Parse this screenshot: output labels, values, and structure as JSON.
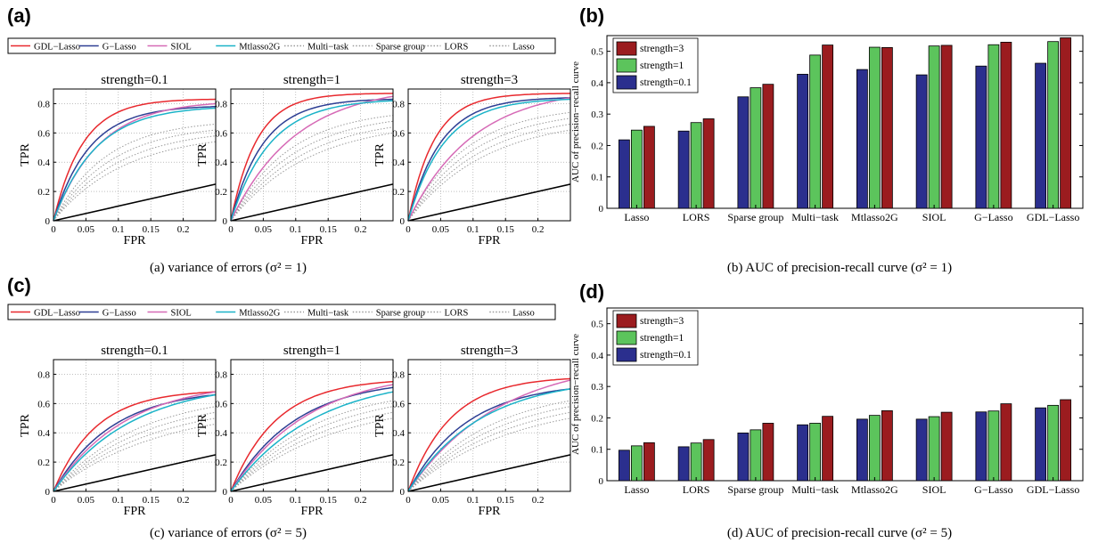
{
  "panels": {
    "a": {
      "label": "(a)",
      "caption": "(a)  variance of errors (σ² = 1)"
    },
    "b": {
      "label": "(b)",
      "caption": "(b)  AUC of precision-recall curve (σ² = 1)"
    },
    "c": {
      "label": "(c)",
      "caption": "(c)  variance of errors (σ² = 5)"
    },
    "d": {
      "label": "(d)",
      "caption": "(d)  AUC of precision-recall curve (σ² = 5)"
    }
  },
  "roc_legend": [
    {
      "name": "GDL−Lasso",
      "color": "#e8292e",
      "style": "solid"
    },
    {
      "name": "G−Lasso",
      "color": "#2e3f94",
      "style": "solid"
    },
    {
      "name": "SIOL",
      "color": "#d66ab6",
      "style": "solid"
    },
    {
      "name": "Mtlasso2G",
      "color": "#1bb3c8",
      "style": "solid"
    },
    {
      "name": "Multi−task",
      "color": "#9a9a9a",
      "style": "dotted"
    },
    {
      "name": "Sparse group",
      "color": "#9a9a9a",
      "style": "dotted"
    },
    {
      "name": "LORS",
      "color": "#9a9a9a",
      "style": "dotted"
    },
    {
      "name": "Lasso",
      "color": "#9a9a9a",
      "style": "dotted"
    }
  ],
  "bar_legend": [
    {
      "name": "strength=3",
      "color": "#9b1c1f"
    },
    {
      "name": "strength=1",
      "color": "#5cc45c"
    },
    {
      "name": "strength=0.1",
      "color": "#2b2f8e"
    }
  ],
  "chart_data": [
    {
      "id": "a",
      "type": "line",
      "xlabel": "FPR",
      "ylabel": "TPR",
      "xlim": [
        0,
        0.25
      ],
      "ylim": [
        0,
        0.9
      ],
      "grid": true,
      "xticks": [
        0,
        0.05,
        0.1,
        0.15,
        0.2
      ],
      "yticks": [
        0,
        0.2,
        0.4,
        0.6,
        0.8
      ],
      "subplots": [
        {
          "title": "strength=0.1",
          "curves": [
            {
              "series": "GDL−Lasso",
              "top": 0.83,
              "k": 0.045
            },
            {
              "series": "G−Lasso",
              "top": 0.78,
              "k": 0.055
            },
            {
              "series": "SIOL",
              "top": 0.8,
              "k": 0.07
            },
            {
              "series": "Mtlasso2G",
              "top": 0.77,
              "k": 0.065
            },
            {
              "series": "Multi−task",
              "top": 0.66,
              "k": 0.08
            },
            {
              "series": "Sparse group",
              "top": 0.62,
              "k": 0.09
            },
            {
              "series": "LORS",
              "top": 0.58,
              "k": 0.1
            },
            {
              "series": "Lasso",
              "top": 0.54,
              "k": 0.11
            }
          ]
        },
        {
          "title": "strength=1",
          "curves": [
            {
              "series": "GDL−Lasso",
              "top": 0.87,
              "k": 0.04
            },
            {
              "series": "G−Lasso",
              "top": 0.83,
              "k": 0.05
            },
            {
              "series": "SIOL",
              "top": 0.85,
              "k": 0.1
            },
            {
              "series": "Mtlasso2G",
              "top": 0.82,
              "k": 0.06
            },
            {
              "series": "Multi−task",
              "top": 0.72,
              "k": 0.09
            },
            {
              "series": "Sparse group",
              "top": 0.68,
              "k": 0.1
            },
            {
              "series": "LORS",
              "top": 0.64,
              "k": 0.11
            },
            {
              "series": "Lasso",
              "top": 0.6,
              "k": 0.12
            }
          ]
        },
        {
          "title": "strength=3",
          "curves": [
            {
              "series": "GDL−Lasso",
              "top": 0.87,
              "k": 0.04
            },
            {
              "series": "G−Lasso",
              "top": 0.84,
              "k": 0.05
            },
            {
              "series": "SIOL",
              "top": 0.84,
              "k": 0.1
            },
            {
              "series": "Mtlasso2G",
              "top": 0.83,
              "k": 0.055
            },
            {
              "series": "Multi−task",
              "top": 0.74,
              "k": 0.09
            },
            {
              "series": "Sparse group",
              "top": 0.7,
              "k": 0.1
            },
            {
              "series": "LORS",
              "top": 0.66,
              "k": 0.11
            },
            {
              "series": "Lasso",
              "top": 0.62,
              "k": 0.12
            }
          ]
        }
      ]
    },
    {
      "id": "b",
      "type": "bar",
      "ylabel": "AUC of precision−recall curve",
      "ylim": [
        0,
        0.55
      ],
      "yticks": [
        0,
        0.1,
        0.2,
        0.3,
        0.4,
        0.5
      ],
      "categories": [
        "Lasso",
        "LORS",
        "Sparse group",
        "Multi−task",
        "Mtlasso2G",
        "SIOL",
        "G−Lasso",
        "GDL−Lasso"
      ],
      "series": [
        {
          "name": "strength=0.1",
          "values": [
            0.218,
            0.246,
            0.355,
            0.427,
            0.442,
            0.425,
            0.453,
            0.462
          ]
        },
        {
          "name": "strength=1",
          "values": [
            0.249,
            0.273,
            0.384,
            0.488,
            0.513,
            0.517,
            0.521,
            0.531
          ]
        },
        {
          "name": "strength=3",
          "values": [
            0.261,
            0.285,
            0.395,
            0.52,
            0.512,
            0.519,
            0.529,
            0.543
          ]
        }
      ]
    },
    {
      "id": "c",
      "type": "line",
      "xlabel": "FPR",
      "ylabel": "TPR",
      "xlim": [
        0,
        0.25
      ],
      "ylim": [
        0,
        0.9
      ],
      "grid": true,
      "xticks": [
        0,
        0.05,
        0.1,
        0.15,
        0.2
      ],
      "yticks": [
        0,
        0.2,
        0.4,
        0.6,
        0.8
      ],
      "subplots": [
        {
          "title": "strength=0.1",
          "curves": [
            {
              "series": "GDL−Lasso",
              "top": 0.68,
              "k": 0.065
            },
            {
              "series": "G−Lasso",
              "top": 0.66,
              "k": 0.09
            },
            {
              "series": "SIOL",
              "top": 0.68,
              "k": 0.11
            },
            {
              "series": "Mtlasso2G",
              "top": 0.66,
              "k": 0.12
            },
            {
              "series": "Multi−task",
              "top": 0.58,
              "k": 0.13
            },
            {
              "series": "Sparse group",
              "top": 0.54,
              "k": 0.14
            },
            {
              "series": "LORS",
              "top": 0.5,
              "k": 0.15
            },
            {
              "series": "Lasso",
              "top": 0.46,
              "k": 0.16
            }
          ]
        },
        {
          "title": "strength=1",
          "curves": [
            {
              "series": "GDL−Lasso",
              "top": 0.75,
              "k": 0.07
            },
            {
              "series": "G−Lasso",
              "top": 0.71,
              "k": 0.1
            },
            {
              "series": "SIOL",
              "top": 0.73,
              "k": 0.12
            },
            {
              "series": "Mtlasso2G",
              "top": 0.68,
              "k": 0.13
            },
            {
              "series": "Multi−task",
              "top": 0.62,
              "k": 0.13
            },
            {
              "series": "Sparse group",
              "top": 0.58,
              "k": 0.14
            },
            {
              "series": "LORS",
              "top": 0.54,
              "k": 0.15
            },
            {
              "series": "Lasso",
              "top": 0.5,
              "k": 0.16
            }
          ]
        },
        {
          "title": "strength=3",
          "curves": [
            {
              "series": "GDL−Lasso",
              "top": 0.77,
              "k": 0.065
            },
            {
              "series": "G−Lasso",
              "top": 0.7,
              "k": 0.09
            },
            {
              "series": "SIOL",
              "top": 0.76,
              "k": 0.14
            },
            {
              "series": "Mtlasso2G",
              "top": 0.7,
              "k": 0.11
            },
            {
              "series": "Multi−task",
              "top": 0.62,
              "k": 0.13
            },
            {
              "series": "Sparse group",
              "top": 0.58,
              "k": 0.14
            },
            {
              "series": "LORS",
              "top": 0.54,
              "k": 0.15
            },
            {
              "series": "Lasso",
              "top": 0.5,
              "k": 0.16
            }
          ]
        }
      ]
    },
    {
      "id": "d",
      "type": "bar",
      "ylabel": "AUC of precision−recall curve",
      "ylim": [
        0,
        0.55
      ],
      "yticks": [
        0,
        0.1,
        0.2,
        0.3,
        0.4,
        0.5
      ],
      "categories": [
        "Lasso",
        "LORS",
        "Sparse group",
        "Multi−task",
        "Mtlasso2G",
        "SIOL",
        "G−Lasso",
        "GDL−Lasso"
      ],
      "series": [
        {
          "name": "strength=0.1",
          "values": [
            0.097,
            0.108,
            0.152,
            0.178,
            0.196,
            0.196,
            0.219,
            0.232
          ]
        },
        {
          "name": "strength=1",
          "values": [
            0.111,
            0.12,
            0.162,
            0.183,
            0.208,
            0.204,
            0.222,
            0.24
          ]
        },
        {
          "name": "strength=3",
          "values": [
            0.121,
            0.131,
            0.183,
            0.205,
            0.223,
            0.218,
            0.245,
            0.258
          ]
        }
      ]
    }
  ]
}
